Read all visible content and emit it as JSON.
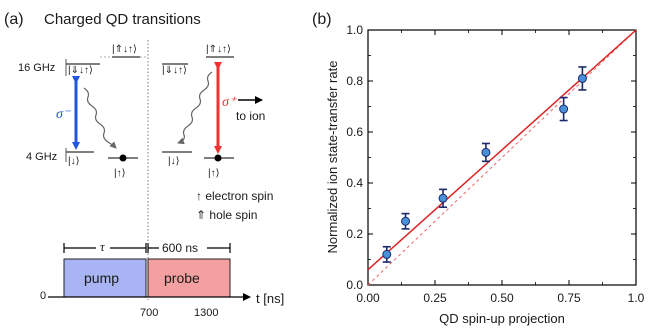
{
  "panel_a": {
    "label": "(a)",
    "title": "Charged QD transitions",
    "energy_labels": {
      "high": "16 GHz",
      "low": "4 GHz"
    },
    "states": {
      "trion_left": "|⇓↓↑⟩",
      "trion_left_alt": "|⇑↓↑⟩",
      "trion_right": "|⇑↓↑⟩",
      "trion_right_alt": "|⇓↓↑⟩",
      "ground_left_down": "|↓⟩",
      "ground_left_up": "|↑⟩",
      "ground_right_down": "|↓⟩",
      "ground_right_up": "|↑⟩"
    },
    "sigma_minus": "σ⁻",
    "sigma_plus": "σ⁺",
    "to_ion": "to ion",
    "legend": {
      "electron": "↑ electron spin",
      "hole": "⇑ hole spin"
    },
    "colors": {
      "sigma_minus": "#2255dd",
      "sigma_plus": "#ee3333",
      "pump": "#a8b4f4",
      "probe": "#f4a0a0"
    },
    "timing": {
      "tau": "τ",
      "probe_duration": "600 ns",
      "pump_label": "pump",
      "probe_label": "probe",
      "axis_label": "t [ns]",
      "ticks": [
        "0",
        "700",
        "1300"
      ]
    }
  },
  "chart_data": {
    "type": "scatter",
    "panel_label": "(b)",
    "xlabel": "QD spin-up projection",
    "ylabel": "Normalized ion state-transfer rate",
    "xlim": [
      0,
      1
    ],
    "ylim": [
      0,
      1
    ],
    "xticks": [
      "0.00",
      "0.25",
      "0.50",
      "0.75",
      "1.0"
    ],
    "yticks": [
      "0.0",
      "0.2",
      "0.4",
      "0.6",
      "0.8",
      "1.0"
    ],
    "points": [
      {
        "x": 0.07,
        "y": 0.12,
        "err": 0.03
      },
      {
        "x": 0.14,
        "y": 0.25,
        "err": 0.03
      },
      {
        "x": 0.28,
        "y": 0.34,
        "err": 0.035
      },
      {
        "x": 0.44,
        "y": 0.52,
        "err": 0.035
      },
      {
        "x": 0.73,
        "y": 0.69,
        "err": 0.045
      },
      {
        "x": 0.8,
        "y": 0.81,
        "err": 0.045
      }
    ],
    "fit_line": {
      "x": [
        0,
        1
      ],
      "y": [
        0.06,
        1.0
      ],
      "style": "solid",
      "color": "#dd2222"
    },
    "reference_line": {
      "x": [
        0,
        1
      ],
      "y": [
        0,
        1
      ],
      "style": "dashed",
      "color": "#ee6666"
    },
    "marker_color": "#4a90d9",
    "errorbar_color": "#1a2a6a"
  }
}
